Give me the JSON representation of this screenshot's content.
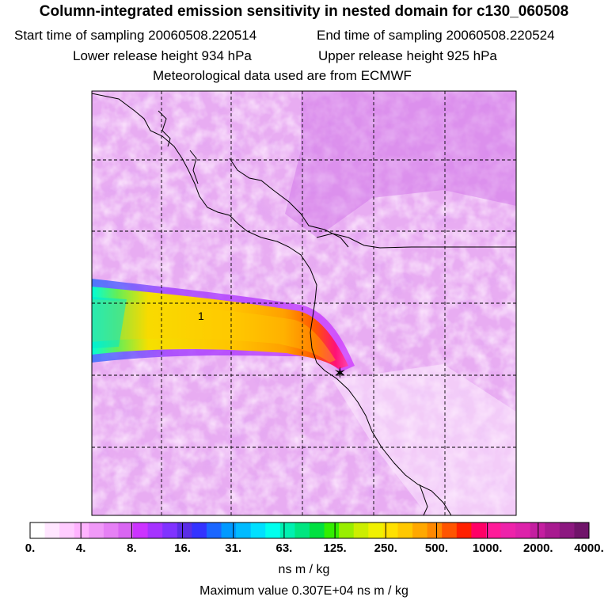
{
  "header": {
    "title": "Column-integrated emission sensitivity in nested domain for c130_060508",
    "start_label": "Start time of sampling 20060508.220514",
    "end_label": "End time of sampling 20060508.220524",
    "lower_label": "Lower release height  934 hPa",
    "upper_label": "Upper release height  925 hPa",
    "met_label": "Meteorological data used are from ECMWF"
  },
  "map": {
    "plume_label": "1",
    "release_marker": "✶"
  },
  "colorbar": {
    "ticks": [
      "0.",
      "4.",
      "8.",
      "16.",
      "31.",
      "63.",
      "125.",
      "250.",
      "500.",
      "1000.",
      "2000.",
      "4000."
    ],
    "colors": [
      "#ffffff",
      "#ffe6ff",
      "#ffccff",
      "#ffb3ff",
      "#f099f8",
      "#e680f5",
      "#d966f2",
      "#cc33ff",
      "#a633ff",
      "#8033ff",
      "#5a2ee6",
      "#3333ff",
      "#1a66ff",
      "#0099ff",
      "#00bbff",
      "#00e0ff",
      "#00ffee",
      "#00f0b0",
      "#00e680",
      "#00e040",
      "#33ee00",
      "#99ee00",
      "#ccee00",
      "#f0f000",
      "#ffe000",
      "#ffc800",
      "#ffa800",
      "#ff8800",
      "#ff5500",
      "#ff2000",
      "#ff0066",
      "#ff1a99",
      "#ee22aa",
      "#dd22aa",
      "#c41ea0",
      "#a81a90",
      "#8c1880",
      "#70146a"
    ],
    "units": "ns m / kg",
    "max_label": "Maximum value  0.307E+04 ns m / kg"
  },
  "palette": {
    "background_magenta": "#e5a7ef",
    "light_magenta": "#f8e0fb",
    "dark_magenta": "#d07ee3",
    "grid_line": "#000000"
  }
}
